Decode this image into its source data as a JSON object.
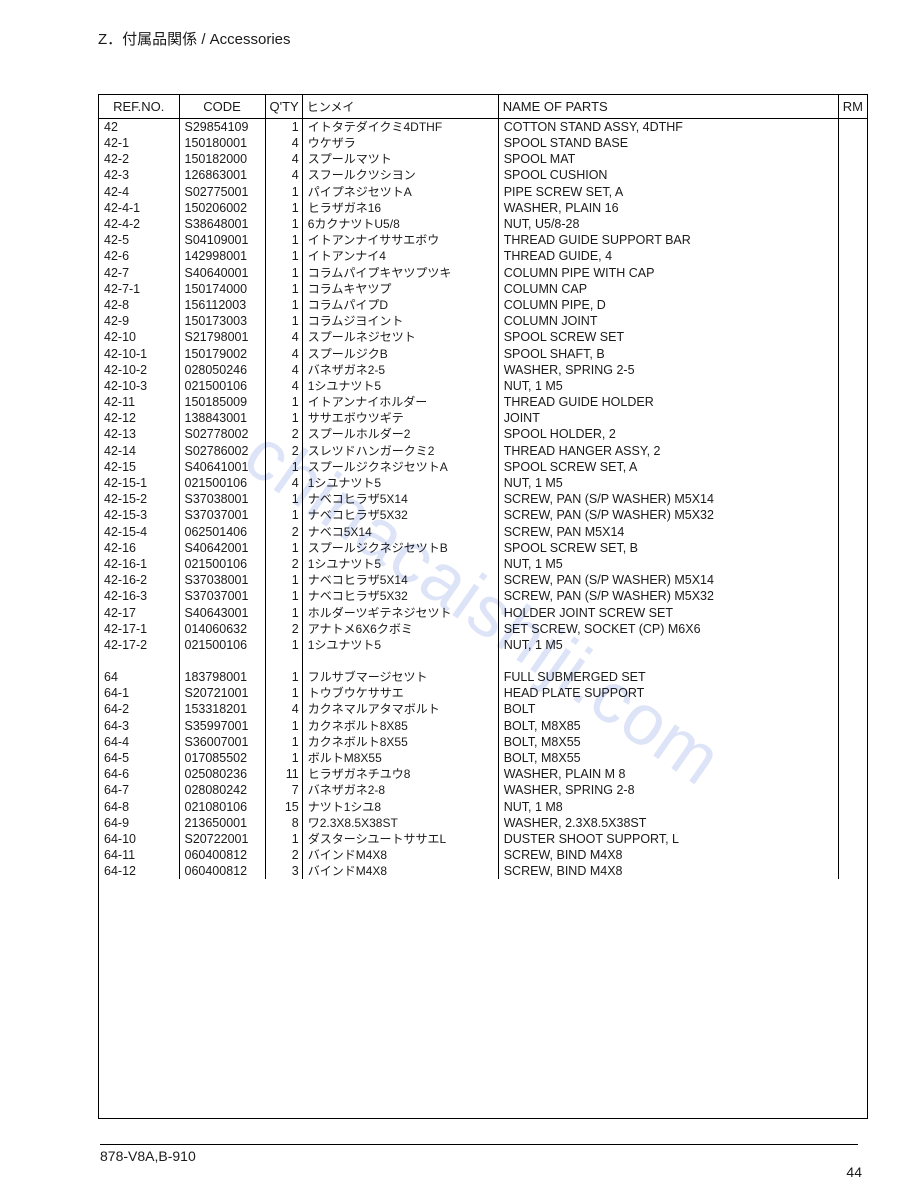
{
  "page": {
    "title": "Z．付属品関係 / Accessories",
    "footer": "878-V8A,B-910",
    "page_number": "44",
    "watermark": "chinacaishiji.com"
  },
  "table": {
    "columns": [
      "REF.NO.",
      "CODE",
      "Q'TY",
      "ヒンメイ",
      "NAME OF PARTS",
      "RM"
    ],
    "rows": [
      [
        "42",
        "S29854109",
        "1",
        "イトタテダイクミ4DTHF",
        "COTTON STAND ASSY, 4DTHF",
        ""
      ],
      [
        "42-1",
        "150180001",
        "4",
        "ウケザラ",
        "SPOOL STAND BASE",
        ""
      ],
      [
        "42-2",
        "150182000",
        "4",
        "スプールマツト",
        "SPOOL MAT",
        ""
      ],
      [
        "42-3",
        "126863001",
        "4",
        "スフールクツシヨン",
        "SPOOL CUSHION",
        ""
      ],
      [
        "42-4",
        "S02775001",
        "1",
        "パイプネジセツトA",
        "PIPE SCREW SET, A",
        ""
      ],
      [
        "42-4-1",
        "150206002",
        "1",
        "ヒラザガネ16",
        "WASHER, PLAIN 16",
        ""
      ],
      [
        "42-4-2",
        "S38648001",
        "1",
        "6カクナツトU5/8",
        "NUT, U5/8-28",
        ""
      ],
      [
        "42-5",
        "S04109001",
        "1",
        "イトアンナイササエボウ",
        "THREAD GUIDE SUPPORT BAR",
        ""
      ],
      [
        "42-6",
        "142998001",
        "1",
        "イトアンナイ4",
        "THREAD GUIDE, 4",
        ""
      ],
      [
        "42-7",
        "S40640001",
        "1",
        "コラムパイプキヤツプツキ",
        "COLUMN PIPE WITH CAP",
        ""
      ],
      [
        "42-7-1",
        "150174000",
        "1",
        "コラムキヤツプ",
        "COLUMN CAP",
        ""
      ],
      [
        "42-8",
        "156112003",
        "1",
        "コラムパイプD",
        "COLUMN PIPE, D",
        ""
      ],
      [
        "42-9",
        "150173003",
        "1",
        "コラムジヨイント",
        "COLUMN JOINT",
        ""
      ],
      [
        "42-10",
        "S21798001",
        "4",
        "スプールネジセツト",
        "SPOOL SCREW SET",
        ""
      ],
      [
        "42-10-1",
        "150179002",
        "4",
        "スプールジクB",
        "SPOOL SHAFT, B",
        ""
      ],
      [
        "42-10-2",
        "028050246",
        "4",
        "バネザガネ2-5",
        "WASHER, SPRING 2-5",
        ""
      ],
      [
        "42-10-3",
        "021500106",
        "4",
        "1シユナツト5",
        "NUT, 1 M5",
        ""
      ],
      [
        "42-11",
        "150185009",
        "1",
        "イトアンナイホルダー",
        "THREAD GUIDE HOLDER",
        ""
      ],
      [
        "42-12",
        "138843001",
        "1",
        "ササエボウツギテ",
        "JOINT",
        ""
      ],
      [
        "42-13",
        "S02778002",
        "2",
        "スプールホルダー2",
        "SPOOL HOLDER, 2",
        ""
      ],
      [
        "42-14",
        "S02786002",
        "2",
        "スレツドハンガークミ2",
        "THREAD HANGER ASSY, 2",
        ""
      ],
      [
        "42-15",
        "S40641001",
        "1",
        "スプールジクネジセツトA",
        "SPOOL SCREW SET, A",
        ""
      ],
      [
        "42-15-1",
        "021500106",
        "4",
        "1シユナツト5",
        "NUT, 1 M5",
        ""
      ],
      [
        "42-15-2",
        "S37038001",
        "1",
        "ナベコヒラザ5X14",
        "SCREW, PAN (S/P WASHER) M5X14",
        ""
      ],
      [
        "42-15-3",
        "S37037001",
        "1",
        "ナベコヒラザ5X32",
        "SCREW, PAN (S/P WASHER) M5X32",
        ""
      ],
      [
        "42-15-4",
        "062501406",
        "2",
        "ナベコ5X14",
        "SCREW, PAN M5X14",
        ""
      ],
      [
        "42-16",
        "S40642001",
        "1",
        "スプールジクネジセツトB",
        "SPOOL SCREW SET, B",
        ""
      ],
      [
        "42-16-1",
        "021500106",
        "2",
        "1シユナツト5",
        "NUT, 1 M5",
        ""
      ],
      [
        "42-16-2",
        "S37038001",
        "1",
        "ナベコヒラザ5X14",
        "SCREW, PAN (S/P WASHER) M5X14",
        ""
      ],
      [
        "42-16-3",
        "S37037001",
        "1",
        "ナベコヒラザ5X32",
        "SCREW, PAN (S/P WASHER) M5X32",
        ""
      ],
      [
        "42-17",
        "S40643001",
        "1",
        "ホルダーツギテネジセツト",
        "HOLDER JOINT SCREW SET",
        ""
      ],
      [
        "42-17-1",
        "014060632",
        "2",
        "アナトメ6X6クボミ",
        "SET SCREW, SOCKET (CP) M6X6",
        ""
      ],
      [
        "42-17-2",
        "021500106",
        "1",
        "1シユナツト5",
        "NUT, 1 M5",
        ""
      ],
      [
        "",
        "",
        "",
        "",
        "",
        ""
      ],
      [
        "64",
        "183798001",
        "1",
        "フルサブマージセツト",
        "FULL SUBMERGED SET",
        ""
      ],
      [
        "64-1",
        "S20721001",
        "1",
        "トウブウケササエ",
        "HEAD PLATE SUPPORT",
        ""
      ],
      [
        "64-2",
        "153318201",
        "4",
        "カクネマルアタマボルト",
        "BOLT",
        ""
      ],
      [
        "64-3",
        "S35997001",
        "1",
        "カクネボルト8X85",
        "BOLT, M8X85",
        ""
      ],
      [
        "64-4",
        "S36007001",
        "1",
        "カクネボルト8X55",
        "BOLT, M8X55",
        ""
      ],
      [
        "64-5",
        "017085502",
        "1",
        "ボルトM8X55",
        "BOLT, M8X55",
        ""
      ],
      [
        "64-6",
        "025080236",
        "11",
        "ヒラザガネチユウ8",
        "WASHER, PLAIN M 8",
        ""
      ],
      [
        "64-7",
        "028080242",
        "7",
        "バネザガネ2-8",
        "WASHER, SPRING 2-8",
        ""
      ],
      [
        "64-8",
        "021080106",
        "15",
        "ナツト1シユ8",
        "NUT, 1 M8",
        ""
      ],
      [
        "64-9",
        "213650001",
        "8",
        "ワ2.3X8.5X38ST",
        "WASHER, 2.3X8.5X38ST",
        ""
      ],
      [
        "64-10",
        "S20722001",
        "1",
        "ダスターシユートササエL",
        "DUSTER SHOOT SUPPORT, L",
        ""
      ],
      [
        "64-11",
        "060400812",
        "2",
        "バインドM4X8",
        "SCREW, BIND M4X8",
        ""
      ],
      [
        "64-12",
        "060400812",
        "3",
        "バインドM4X8",
        "SCREW, BIND M4X8",
        ""
      ]
    ]
  }
}
